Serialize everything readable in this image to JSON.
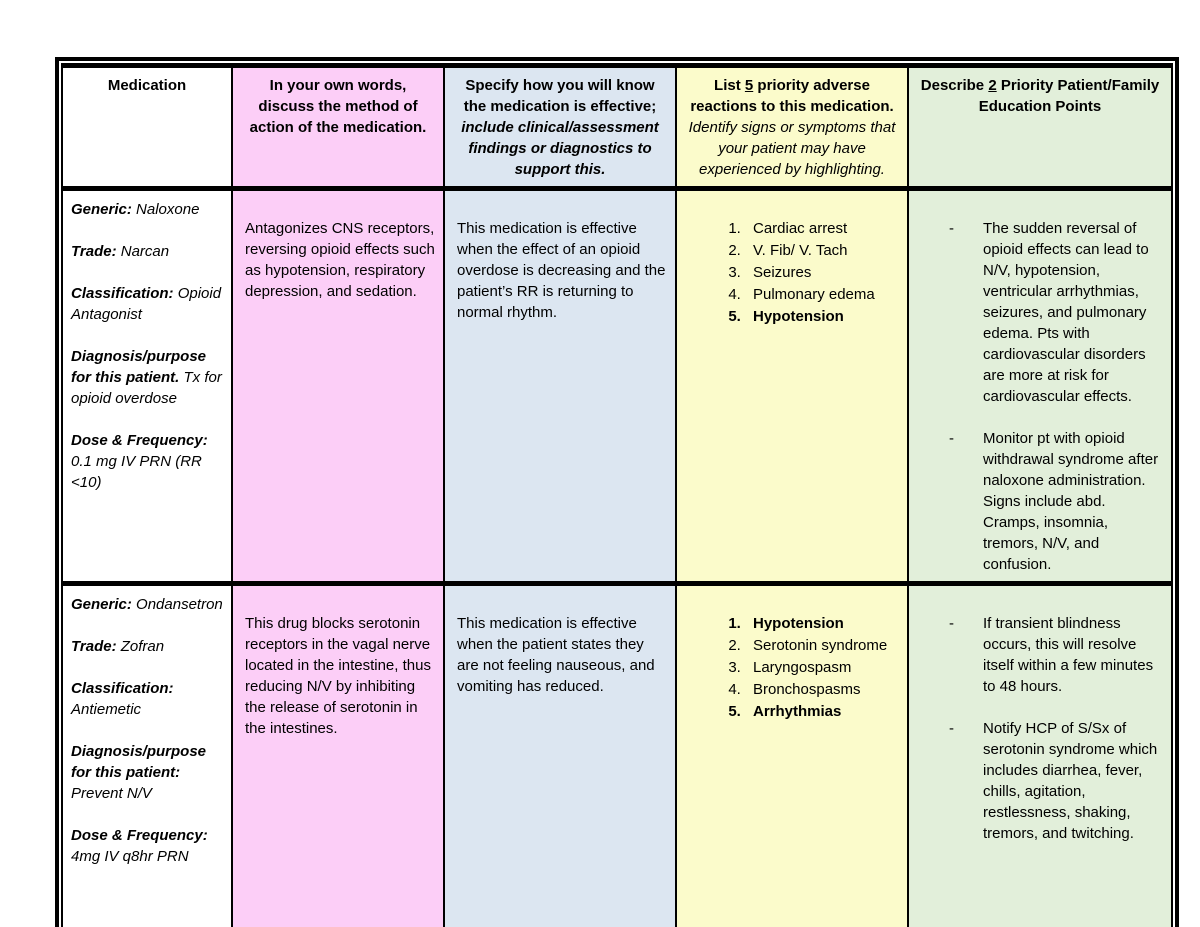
{
  "table": {
    "colors": {
      "action_bg": "#FCCEF7",
      "effective_bg": "#DCE6F1",
      "adverse_bg": "#FBFBCB",
      "education_bg": "#E2EFDA",
      "border": "#000000"
    },
    "headers": {
      "medication": "Medication",
      "action": "In your own words, discuss the method of action of the medication.",
      "effective_main": "Specify how you will know the medication is effective; ",
      "effective_italic": "include clinical/assessment findings or diagnostics to support this.",
      "adverse_pre": "List ",
      "adverse_num": "5",
      "adverse_post": " priority adverse reactions to this medication.",
      "adverse_note": "Identify signs or symptoms that your patient may have experienced by highlighting.",
      "education_pre": "Describe ",
      "education_num": "2",
      "education_post": " Priority Patient/Family Education Points"
    },
    "rows": [
      {
        "medication": {
          "generic_label": "Generic:",
          "generic_value": "Naloxone",
          "trade_label": "Trade:",
          "trade_value": "Narcan",
          "classification_label": "Classification:",
          "classification_value": "Opioid Antagonist",
          "diagnosis_label": "Diagnosis/purpose for this patient.",
          "diagnosis_value": "Tx for opioid overdose",
          "dose_label": "Dose & Frequency:",
          "dose_value": "0.1 mg IV PRN (RR <10)"
        },
        "action": "Antagonizes CNS receptors, reversing opioid effects such as hypotension, respiratory depression, and sedation.",
        "effectiveness": "This medication is effective when the effect of an opioid overdose is decreasing and the patient’s RR is returning to normal rhythm.",
        "adverse_reactions": [
          {
            "text": "Cardiac arrest"
          },
          {
            "text": "V. Fib/ V. Tach"
          },
          {
            "text": "Seizures"
          },
          {
            "text": "Pulmonary edema"
          },
          {
            "text": "Hypotension"
          }
        ],
        "education_points": [
          {
            "text": "The sudden reversal of opioid effects can lead to N/V, hypotension, ventricular arrhythmias, seizures, and pulmonary edema. Pts with cardiovascular disorders are more at risk for cardiovascular effects."
          },
          {
            "text": "Monitor pt with opioid withdrawal syndrome after naloxone administration. Signs include abd. Cramps, insomnia, tremors, N/V, and confusion."
          }
        ]
      },
      {
        "medication": {
          "generic_label": "Generic:",
          "generic_value": "Ondansetron",
          "trade_label": "Trade:",
          "trade_value": "Zofran",
          "classification_label": "Classification:",
          "classification_value": "Antiemetic",
          "diagnosis_label": "Diagnosis/purpose for this patient:",
          "diagnosis_value": "Prevent N/V",
          "dose_label": "Dose & Frequency:",
          "dose_value": "4mg IV q8hr PRN"
        },
        "action": "This drug blocks serotonin receptors in the vagal nerve located in the intestine, thus reducing N/V by inhibiting the release of serotonin in the intestines.",
        "effectiveness": "This medication is effective when the patient states they are not feeling nauseous, and vomiting has reduced.",
        "adverse_reactions": [
          {
            "text": "Hypotension"
          },
          {
            "text": "Serotonin syndrome"
          },
          {
            "text": "Laryngospasm"
          },
          {
            "text": "Bronchospasms"
          },
          {
            "text": "Arrhythmias"
          }
        ],
        "education_points": [
          {
            "text": "If transient blindness occurs, this will resolve itself within a few minutes to 48 hours."
          },
          {
            "text": "Notify HCP of S/Sx of serotonin syndrome which includes diarrhea, fever, chills, agitation, restlessness, shaking, tremors, and twitching."
          }
        ]
      }
    ]
  }
}
